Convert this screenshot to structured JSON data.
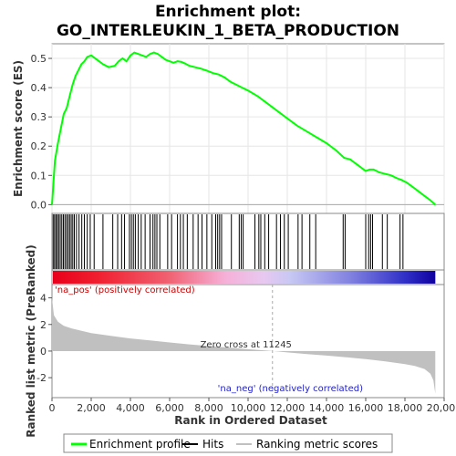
{
  "chart_data": {
    "type": "line",
    "title_line1": "Enrichment plot:",
    "title_line2": "GO_INTERLEUKIN_1_BETA_PRODUCTION",
    "es_ylabel": "Enrichment score (ES)",
    "metric_ylabel": "Ranked list metric (PreRanked)",
    "xlabel": "Rank in Ordered Dataset",
    "x_ticks": [
      "0",
      "2,000",
      "4,000",
      "6,000",
      "8,000",
      "10,000",
      "12,000",
      "14,000",
      "16,000",
      "18,000",
      "20,000"
    ],
    "x_tick_values": [
      0,
      2000,
      4000,
      6000,
      8000,
      10000,
      12000,
      14000,
      16000,
      18000,
      20000
    ],
    "xlim": [
      0,
      20000
    ],
    "es_ylim": [
      -0.03,
      0.55
    ],
    "es_ticks": [
      "0.0",
      "0.1",
      "0.2",
      "0.3",
      "0.4",
      "0.5"
    ],
    "es_tick_values": [
      0.0,
      0.1,
      0.2,
      0.3,
      0.4,
      0.5
    ],
    "metric_ylim": [
      -3.5,
      5
    ],
    "metric_ticks": [
      "-2",
      "0",
      "2",
      "4"
    ],
    "metric_tick_values": [
      -2,
      0,
      2,
      4
    ],
    "enrichment_profile": {
      "name": "Enrichment profile",
      "color": "#00ff00",
      "x": [
        0,
        150,
        300,
        450,
        600,
        750,
        900,
        1050,
        1200,
        1350,
        1500,
        1650,
        1800,
        2000,
        2300,
        2600,
        2900,
        3200,
        3400,
        3600,
        3800,
        4000,
        4200,
        4400,
        4600,
        4800,
        5000,
        5200,
        5400,
        5600,
        5800,
        6000,
        6200,
        6400,
        6600,
        6800,
        7000,
        7300,
        7600,
        7900,
        8200,
        8500,
        8800,
        9100,
        9400,
        9700,
        10000,
        10500,
        11000,
        11500,
        12000,
        12500,
        13000,
        13500,
        14000,
        14500,
        14900,
        15200,
        15600,
        16000,
        16200,
        16400,
        16700,
        17000,
        17300,
        17600,
        17800,
        18100,
        18500,
        18900,
        19300,
        19550
      ],
      "y": [
        0.0,
        0.15,
        0.21,
        0.26,
        0.31,
        0.33,
        0.37,
        0.41,
        0.44,
        0.46,
        0.48,
        0.49,
        0.505,
        0.51,
        0.495,
        0.48,
        0.47,
        0.475,
        0.49,
        0.5,
        0.49,
        0.51,
        0.52,
        0.515,
        0.51,
        0.505,
        0.515,
        0.52,
        0.515,
        0.505,
        0.495,
        0.49,
        0.485,
        0.49,
        0.488,
        0.482,
        0.475,
        0.47,
        0.465,
        0.458,
        0.45,
        0.445,
        0.435,
        0.42,
        0.41,
        0.4,
        0.39,
        0.37,
        0.345,
        0.32,
        0.295,
        0.27,
        0.25,
        0.23,
        0.21,
        0.185,
        0.16,
        0.155,
        0.135,
        0.115,
        0.12,
        0.12,
        0.11,
        0.105,
        0.1,
        0.09,
        0.085,
        0.075,
        0.055,
        0.035,
        0.015,
        0.0
      ]
    },
    "hits": [
      60,
      130,
      200,
      270,
      340,
      420,
      500,
      580,
      660,
      740,
      820,
      900,
      980,
      1060,
      1140,
      1250,
      1380,
      1520,
      1650,
      1800,
      1950,
      2150,
      2600,
      3100,
      3350,
      3550,
      3700,
      3950,
      4050,
      4150,
      4250,
      4400,
      4550,
      4750,
      5000,
      5150,
      5250,
      5350,
      5500,
      5900,
      6100,
      6400,
      6550,
      6700,
      6900,
      7200,
      7450,
      7650,
      7900,
      8150,
      8350,
      8450,
      8550,
      8650,
      9150,
      9550,
      9650,
      9750,
      10350,
      10550,
      10650,
      10850,
      11050,
      11450,
      11650,
      11850,
      12050,
      12550,
      12750,
      13150,
      13450,
      14850,
      14950,
      16000,
      16150,
      16250,
      16350,
      16850,
      17100,
      17750,
      17900
    ],
    "hits_legend": "Hits",
    "metric_legend": "Ranking metric scores",
    "metric_color": "#c0c0c0",
    "metric_curve": {
      "x": [
        0,
        100,
        300,
        600,
        1000,
        2000,
        3000,
        4000,
        5000,
        6000,
        7000,
        8000,
        9000,
        10000,
        11245,
        12000,
        13000,
        14000,
        15000,
        16000,
        17000,
        18000,
        18500,
        19000,
        19300,
        19450,
        19550
      ],
      "y": [
        4.0,
        2.7,
        2.2,
        1.9,
        1.7,
        1.35,
        1.15,
        0.95,
        0.8,
        0.65,
        0.5,
        0.38,
        0.26,
        0.14,
        0.0,
        -0.1,
        -0.22,
        -0.34,
        -0.46,
        -0.6,
        -0.77,
        -0.98,
        -1.12,
        -1.35,
        -1.7,
        -2.2,
        -3.2
      ]
    },
    "pos_label": "'na_pos' (positively correlated)",
    "neg_label": "'na_neg' (negatively correlated)",
    "zero_cross_label": "Zero cross at 11245",
    "zero_cross": 11245
  }
}
